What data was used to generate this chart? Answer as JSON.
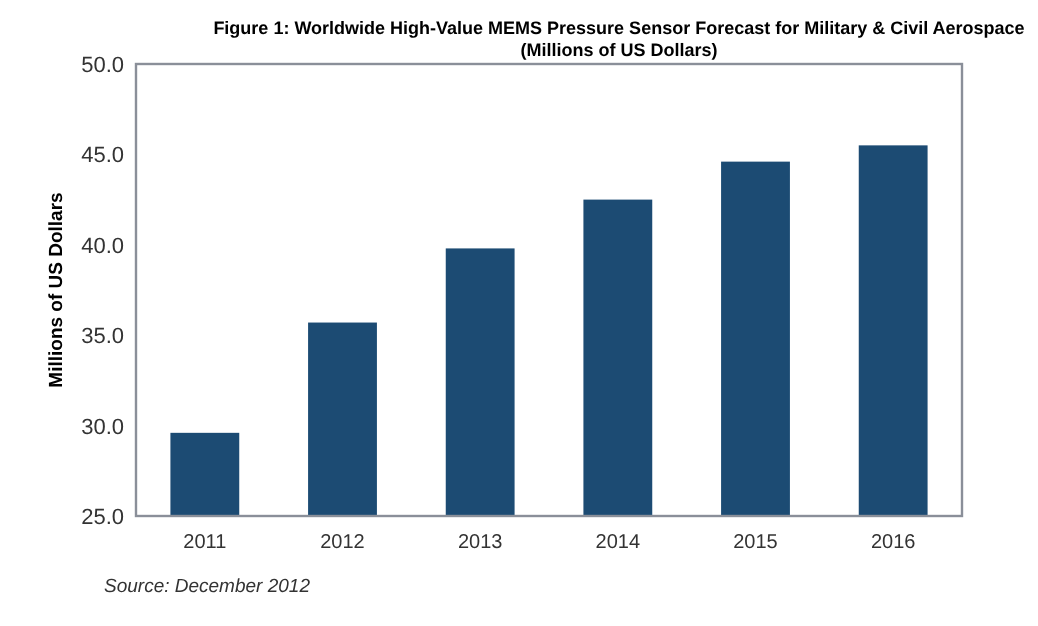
{
  "chart_data": {
    "type": "bar",
    "title": "Figure 1: Worldwide High-Value MEMS Pressure Sensor Forecast for Military & Civil Aerospace",
    "subtitle": "(Millions of US Dollars)",
    "ylabel": "Millions of US Dollars",
    "categories": [
      "2011",
      "2012",
      "2013",
      "2014",
      "2015",
      "2016"
    ],
    "values": [
      29.6,
      35.7,
      39.8,
      42.5,
      44.6,
      45.5
    ],
    "color": "#1c4b73",
    "ylim": [
      25,
      50
    ],
    "yticks": [
      {
        "value": 25,
        "label": "25.0"
      },
      {
        "value": 30,
        "label": "30.0"
      },
      {
        "value": 35,
        "label": "35.0"
      },
      {
        "value": 40,
        "label": "40.0"
      },
      {
        "value": 45,
        "label": "45.0"
      },
      {
        "value": 50,
        "label": "50.0"
      }
    ],
    "annotations": [
      "Source: December 2012"
    ]
  }
}
